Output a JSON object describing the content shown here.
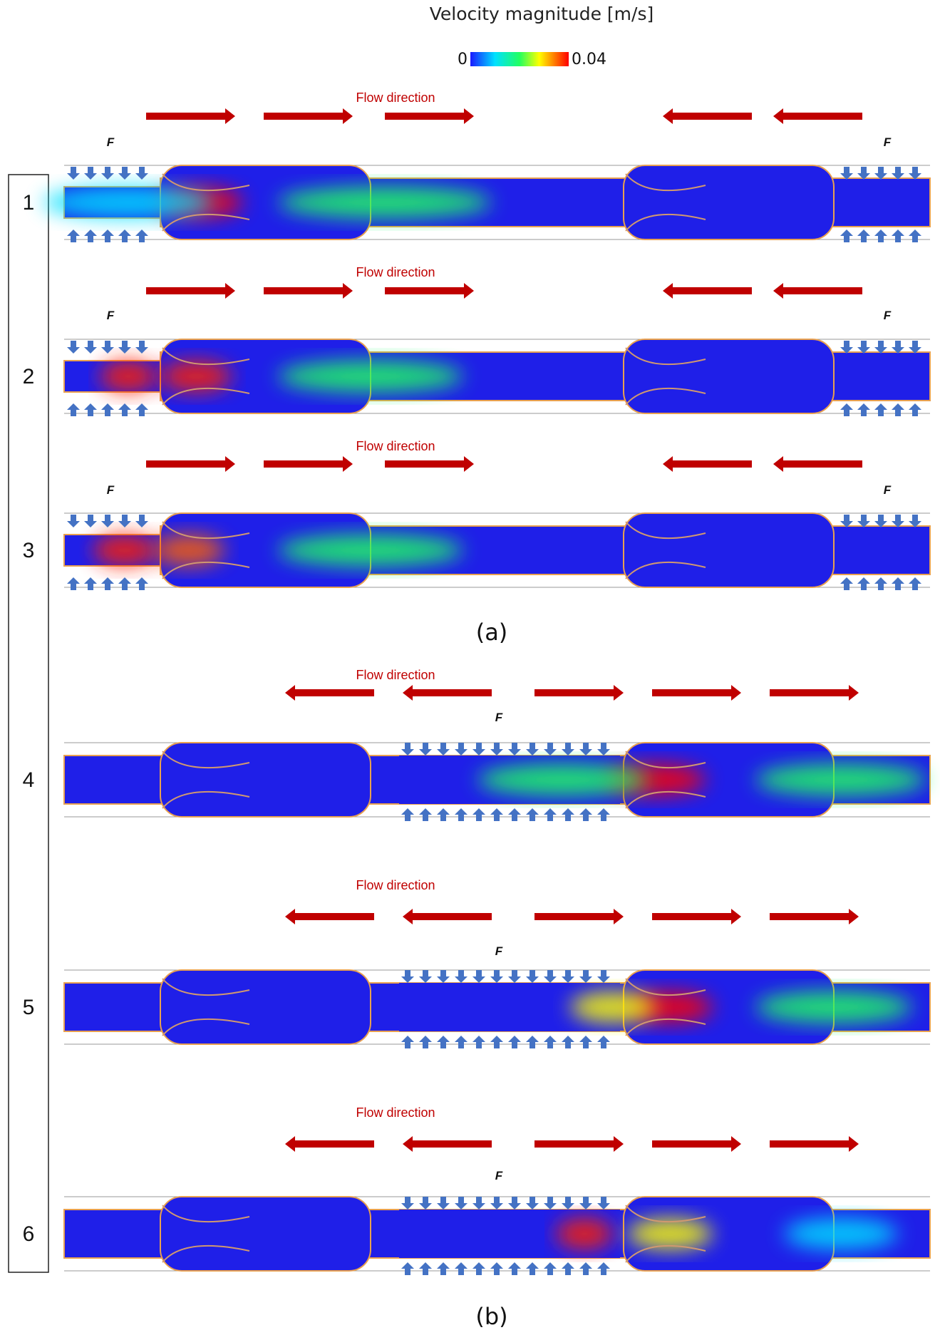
{
  "legend": {
    "title": "Velocity magnitude [m/s]",
    "min_label": "0",
    "max_label": "0.04",
    "min_value": 0,
    "max_value": 0.04,
    "colormap": [
      "#1a1aff",
      "#00e0ff",
      "#22ff60",
      "#ffff00",
      "#ff8000",
      "#ff0000"
    ]
  },
  "flow_label": "Flow direction",
  "force_label": "F",
  "panel_labels": {
    "a": "(a)",
    "b": "(b)"
  },
  "colors": {
    "flow_arrow": "#c00000",
    "force_arrow": "#4472c4",
    "background_flow": "#1f1fe8",
    "vessel_outline": "#e8a050",
    "valve_leaflet": "#d09870"
  },
  "rows": [
    {
      "number": "1",
      "flow": [
        "right",
        "right",
        "right",
        "left",
        "left"
      ],
      "compression": "ends"
    },
    {
      "number": "2",
      "flow": [
        "right",
        "right",
        "right",
        "left",
        "left"
      ],
      "compression": "ends"
    },
    {
      "number": "3",
      "flow": [
        "right",
        "right",
        "right",
        "left",
        "left"
      ],
      "compression": "ends"
    },
    {
      "number": "4",
      "flow": [
        "left",
        "left",
        "right",
        "right",
        "right"
      ],
      "compression": "middle"
    },
    {
      "number": "5",
      "flow": [
        "left",
        "left",
        "right",
        "right",
        "right"
      ],
      "compression": "middle"
    },
    {
      "number": "6",
      "flow": [
        "left",
        "left",
        "right",
        "right",
        "right"
      ],
      "compression": "middle"
    }
  ]
}
